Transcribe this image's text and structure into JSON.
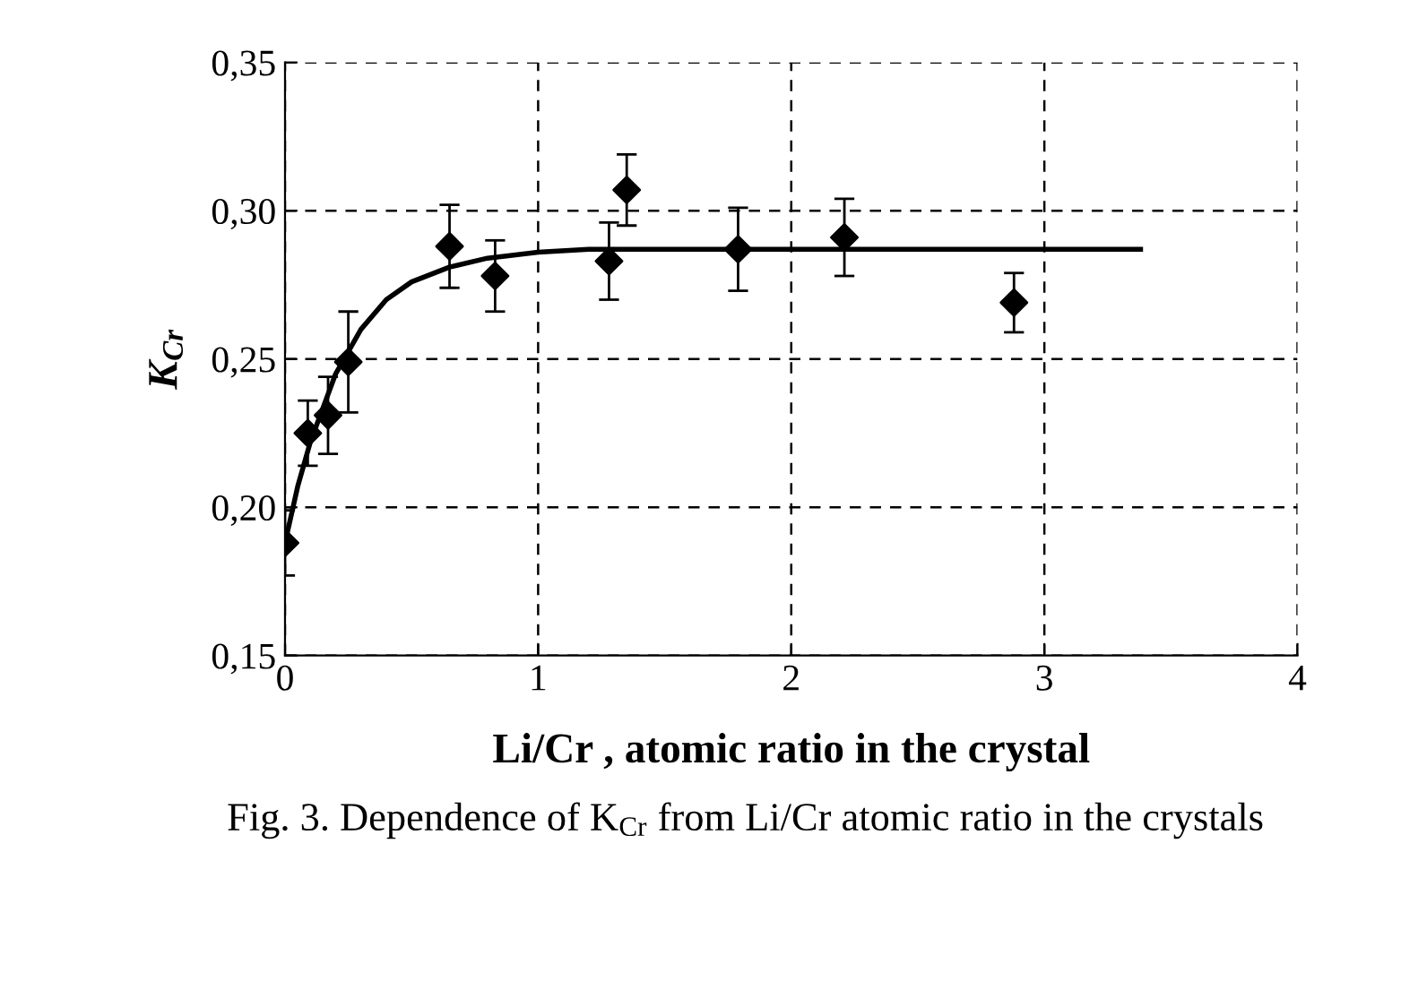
{
  "chart_data": {
    "type": "scatter",
    "xlabel": "Li/Cr , atomic ratio in the crystal",
    "ylabel": "K$_{Cr}$",
    "annotations": [
      "Fig. 3. Dependence of K$_{Cr}$ from Li/Cr atomic ratio in the crystals"
    ],
    "x": [
      0,
      0.09,
      0.17,
      0.25,
      0.65,
      0.83,
      1.28,
      1.35,
      1.79,
      2.21,
      2.88
    ],
    "series": [
      {
        "color": "#000000",
        "marker": "diamond",
        "values": [
          0.188,
          0.225,
          0.231,
          0.249,
          0.288,
          0.278,
          0.283,
          0.307,
          0.287,
          0.291,
          0.269
        ],
        "errors": [
          0.011,
          0.011,
          0.013,
          0.017,
          0.014,
          0.012,
          0.013,
          0.012,
          0.014,
          0.013,
          0.01
        ]
      },
      {
        "type": "line",
        "color": "#000000",
        "line_style": "solid",
        "x": [
          0,
          0.05,
          0.1,
          0.2,
          0.3,
          0.4,
          0.5,
          0.65,
          0.8,
          1.0,
          1.2,
          3.38
        ],
        "values": [
          0.188,
          0.207,
          0.222,
          0.245,
          0.26,
          0.27,
          0.276,
          0.281,
          0.284,
          0.286,
          0.287,
          0.287
        ]
      }
    ],
    "xlim": [
      0,
      4
    ],
    "xticks": [
      0,
      1,
      2,
      3,
      4
    ],
    "ylim": [
      0.15,
      0.35
    ],
    "yticks": [
      {
        "value": 0.15,
        "label": "0,15"
      },
      {
        "value": 0.2,
        "label": "0,20"
      },
      {
        "value": 0.25,
        "label": "0,25"
      },
      {
        "value": 0.3,
        "label": "0,30"
      },
      {
        "value": 0.35,
        "label": "0,35"
      }
    ],
    "grid": true,
    "legend": false
  }
}
